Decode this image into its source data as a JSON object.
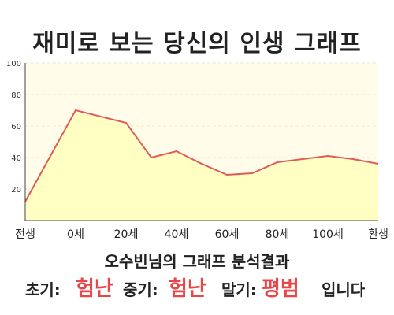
{
  "title": "재미로 보는 당신의 인생 그래프",
  "chart_data": {
    "type": "area",
    "x_labels": [
      "전생",
      "0세",
      "20세",
      "40세",
      "60세",
      "80세",
      "100세",
      "환생"
    ],
    "x": [
      -20,
      0,
      20,
      30,
      40,
      50,
      60,
      70,
      80,
      90,
      100,
      110,
      120
    ],
    "values": [
      12,
      70,
      62,
      40,
      44,
      36,
      29,
      30,
      37,
      39,
      41,
      39,
      36
    ],
    "ylim": [
      0,
      100
    ],
    "y_ticks": [
      20,
      40,
      60,
      80,
      100
    ],
    "xlim": [
      -20,
      120
    ],
    "grid": true,
    "colors": {
      "line": "#e05a5a",
      "fill": "#ffffc4",
      "plot_bg": "#fffdea",
      "grid": "#ece8cc"
    }
  },
  "summary": {
    "title": "오수빈님의 그래프 분석결과",
    "early_label": "초기:",
    "early_value": "험난",
    "mid_label": "중기:",
    "mid_value": "험난",
    "late_label": "말기:",
    "late_value": "평범",
    "ending": "입니다",
    "highlight_color": "#e8474a"
  }
}
